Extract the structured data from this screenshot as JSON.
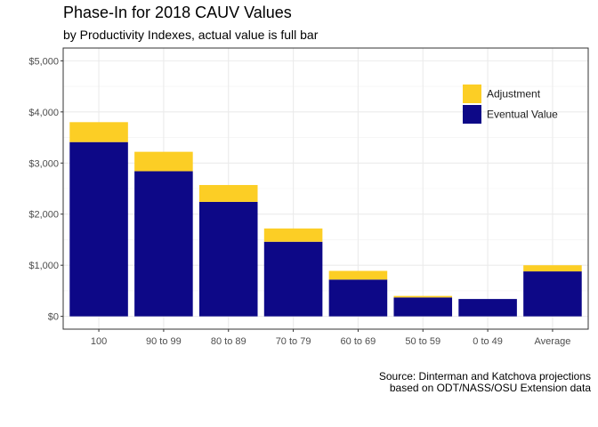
{
  "chart_data": {
    "type": "bar",
    "stacked": true,
    "title": "Phase-In for 2018 CAUV Values",
    "subtitle": "by Productivity Indexes, actual value is full bar",
    "caption_lines": [
      "Source: Dinterman and Katchova projections",
      "based on ODT/NASS/OSU Extension data"
    ],
    "categories": [
      "100",
      "90 to 99",
      "80 to 89",
      "70 to 79",
      "60 to 69",
      "50 to 59",
      "0 to 49",
      "Average"
    ],
    "series": [
      {
        "name": "Eventual Value",
        "color": "#0d0887",
        "values": [
          3410,
          2840,
          2240,
          1460,
          720,
          370,
          340,
          880
        ]
      },
      {
        "name": "Adjustment",
        "color": "#fcce25",
        "values": [
          390,
          380,
          330,
          260,
          170,
          30,
          0,
          120
        ]
      }
    ],
    "ylim": [
      -250,
      5250
    ],
    "yticks": [
      0,
      1000,
      2000,
      3000,
      4000,
      5000
    ],
    "ytick_labels": [
      "$0",
      "$1,000",
      "$2,000",
      "$3,000",
      "$4,000",
      "$5,000"
    ],
    "xlabel": "",
    "ylabel": "",
    "grid": true,
    "legend_position": "top-right",
    "legend_order": [
      "Adjustment",
      "Eventual Value"
    ]
  }
}
